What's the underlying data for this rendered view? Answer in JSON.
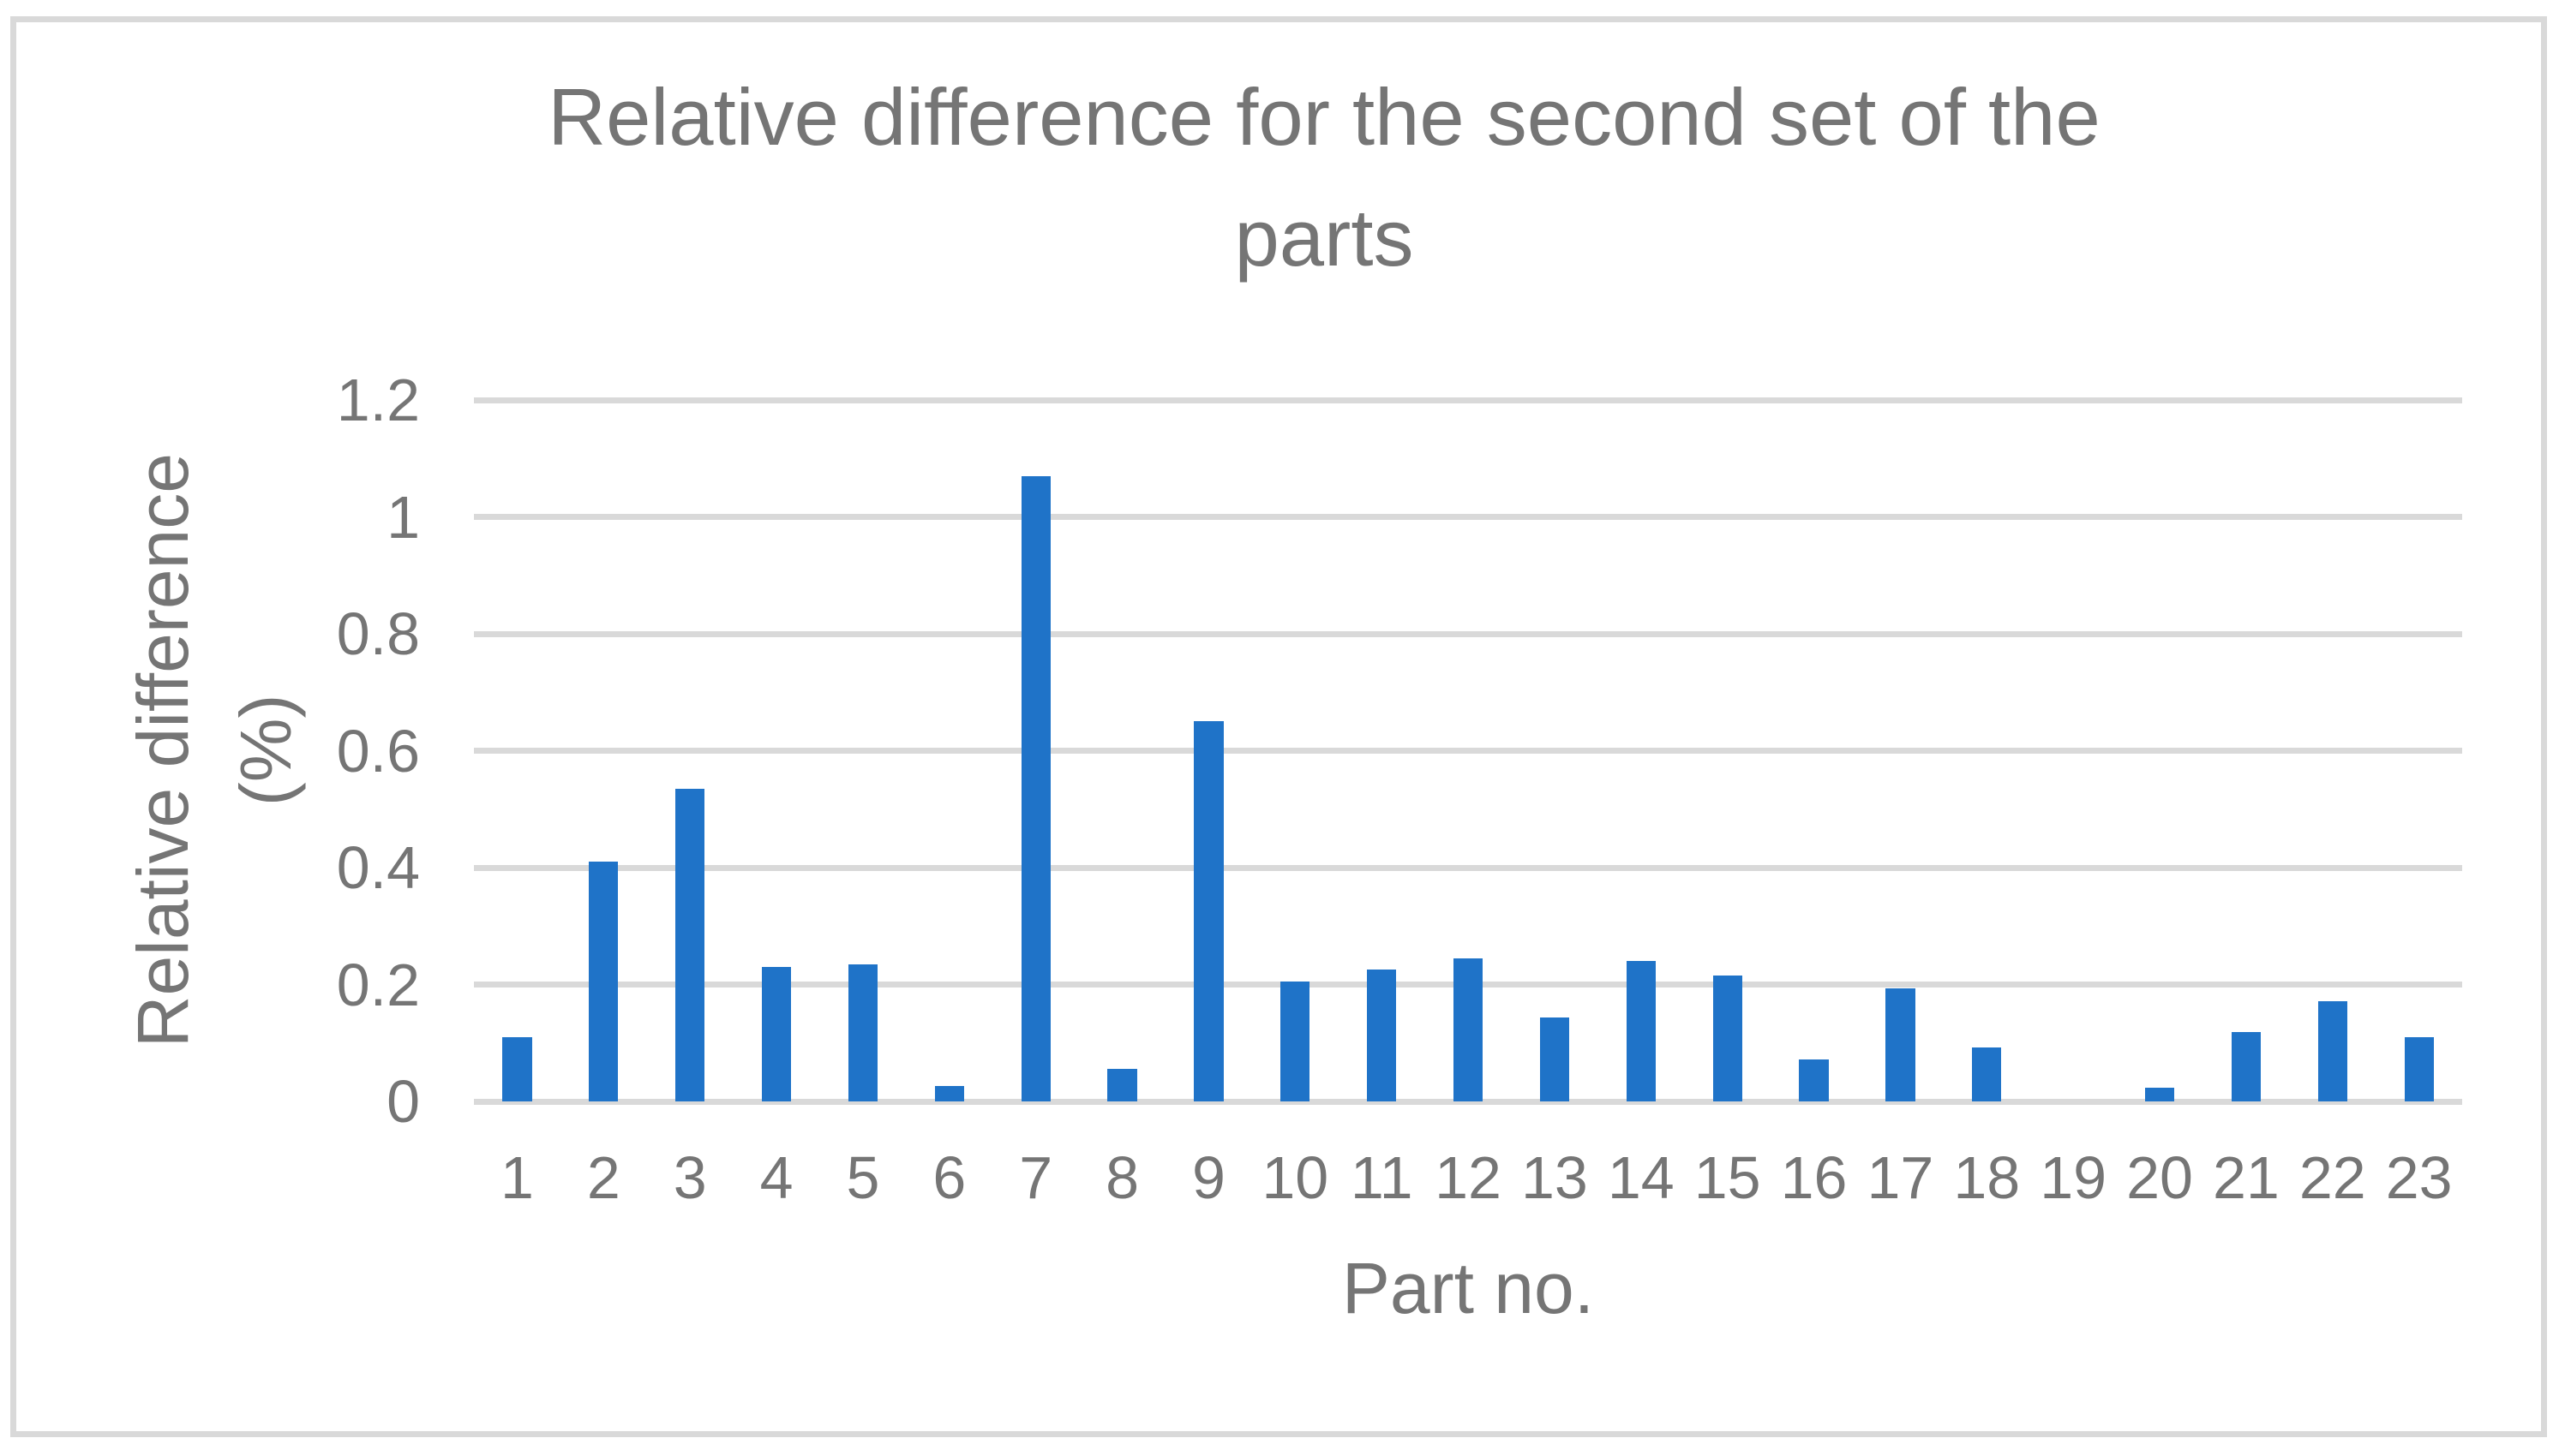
{
  "figure": {
    "background": "#FFFFFF",
    "border_color": "#D9D9D9"
  },
  "colors": {
    "bar": "#1F73C8",
    "gridline": "#D9D9D9",
    "text": "#757575",
    "border": "#D9D9D9"
  },
  "chart_data": {
    "type": "bar",
    "title": "Relative difference for the second set of the parts",
    "title_lines": [
      "Relative difference for the second set of the",
      "parts"
    ],
    "xlabel": "Part no.",
    "ylabel": "Relative difference (%)",
    "ylabel_lines": [
      "Relative difference",
      "(%)"
    ],
    "categories": [
      "1",
      "2",
      "3",
      "4",
      "5",
      "6",
      "7",
      "8",
      "9",
      "10",
      "11",
      "12",
      "13",
      "14",
      "15",
      "16",
      "17",
      "18",
      "19",
      "20",
      "21",
      "22",
      "23"
    ],
    "values": [
      0.11,
      0.41,
      0.535,
      0.23,
      0.235,
      0.027,
      1.07,
      0.056,
      0.65,
      0.205,
      0.225,
      0.245,
      0.143,
      0.24,
      0.215,
      0.072,
      0.194,
      0.092,
      0,
      0.023,
      0.118,
      0.172,
      0.11
    ],
    "ylim": [
      0,
      1.2
    ],
    "yticks": [
      0,
      0.2,
      0.4,
      0.6,
      0.8,
      1,
      1.2
    ],
    "ytick_labels": [
      "0",
      "0.2",
      "0.4",
      "0.6",
      "0.8",
      "1",
      "1.2"
    ],
    "grid": true,
    "legend": false,
    "series_name": "Relative difference (%)"
  }
}
